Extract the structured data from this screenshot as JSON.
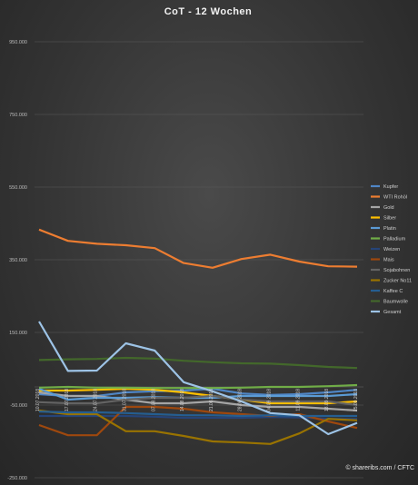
{
  "chart_data": {
    "type": "line",
    "title": "CoT - 12 Wochen",
    "credit": "© shareribs.com / CFTC",
    "ylim": [
      -250000,
      950000
    ],
    "yticks": [
      -250000,
      -50000,
      150000,
      350000,
      550000,
      750000,
      950000
    ],
    "ytick_labels": [
      "-250.000",
      "-50.000",
      "150.000",
      "350.000",
      "550.000",
      "750.000",
      "950.000"
    ],
    "grid": true,
    "legend_position": "right",
    "x": [
      "10.07.2018",
      "17.07.2018",
      "24.07.2018",
      "31.07.2018",
      "07.08.2018",
      "14.08.2018",
      "21.08.2018",
      "28.08.2018",
      "04.09.2018",
      "11.09.2018",
      "18.09.2018",
      "25.09.2018"
    ],
    "series": [
      {
        "name": "Kupfer",
        "color": "#4f86c6",
        "values": [
          -20000,
          -25000,
          -25000,
          -15000,
          -12000,
          -10000,
          -5000,
          -18000,
          -22000,
          -20000,
          -15000,
          -8000
        ]
      },
      {
        "name": "WTI Rohöl",
        "color": "#ed7d31",
        "values": [
          433000,
          402000,
          394000,
          390000,
          382000,
          341000,
          328000,
          352000,
          364000,
          345000,
          332000,
          331000
        ]
      },
      {
        "name": "Gold",
        "color": "#a5a5a5",
        "values": [
          -15000,
          -25000,
          -25000,
          -35000,
          -45000,
          -45000,
          -40000,
          -50000,
          -55000,
          -55000,
          -60000,
          -65000
        ]
      },
      {
        "name": "Silber",
        "color": "#ffc000",
        "values": [
          -10000,
          -10000,
          -8000,
          -5000,
          -8000,
          -15000,
          -25000,
          -35000,
          -45000,
          -45000,
          -45000,
          -40000
        ]
      },
      {
        "name": "Platin",
        "color": "#5b9bd5",
        "values": [
          -5000,
          -35000,
          -30000,
          -30000,
          -28000,
          -30000,
          -30000,
          -25000,
          -25000,
          -25000,
          -25000,
          -20000
        ]
      },
      {
        "name": "Palladium",
        "color": "#70ad47",
        "values": [
          -2000,
          0,
          -2000,
          -2000,
          -3000,
          -3000,
          -3000,
          -2000,
          0,
          0,
          2000,
          5000
        ]
      },
      {
        "name": "Weizen",
        "color": "#264478",
        "values": [
          -80000,
          -80000,
          -80000,
          -80000,
          -82000,
          -85000,
          -85000,
          -85000,
          -83000,
          -84000,
          -88000,
          -88000
        ]
      },
      {
        "name": "Mais",
        "color": "#9e480e",
        "values": [
          -105000,
          -133000,
          -133000,
          -55000,
          -55000,
          -60000,
          -70000,
          -75000,
          -80000,
          -75000,
          -95000,
          -113000
        ]
      },
      {
        "name": "Sojabohnen",
        "color": "#636363",
        "values": [
          -42000,
          -45000,
          -45000,
          -35000,
          -30000,
          -30000,
          -25000,
          -35000,
          -40000,
          -40000,
          -40000,
          -50000
        ]
      },
      {
        "name": "Zucker No11",
        "color": "#997300",
        "values": [
          -65000,
          -75000,
          -75000,
          -122000,
          -122000,
          -135000,
          -150000,
          -153000,
          -157000,
          -128000,
          -88000,
          -92000
        ]
      },
      {
        "name": "Kaffee C",
        "color": "#255e91",
        "values": [
          -68000,
          -70000,
          -70000,
          -72000,
          -75000,
          -78000,
          -78000,
          -80000,
          -78000,
          -80000,
          -80000,
          -80000
        ]
      },
      {
        "name": "Baumwolle",
        "color": "#43682b",
        "values": [
          74000,
          76000,
          77000,
          80000,
          78000,
          72000,
          68000,
          65000,
          64000,
          60000,
          55000,
          52000
        ]
      },
      {
        "name": "Gesamt",
        "color": "#9dc3e6",
        "values": [
          180000,
          44000,
          45000,
          120000,
          100000,
          13000,
          -12000,
          -40000,
          -72000,
          -78000,
          -130000,
          -99000
        ]
      }
    ]
  }
}
